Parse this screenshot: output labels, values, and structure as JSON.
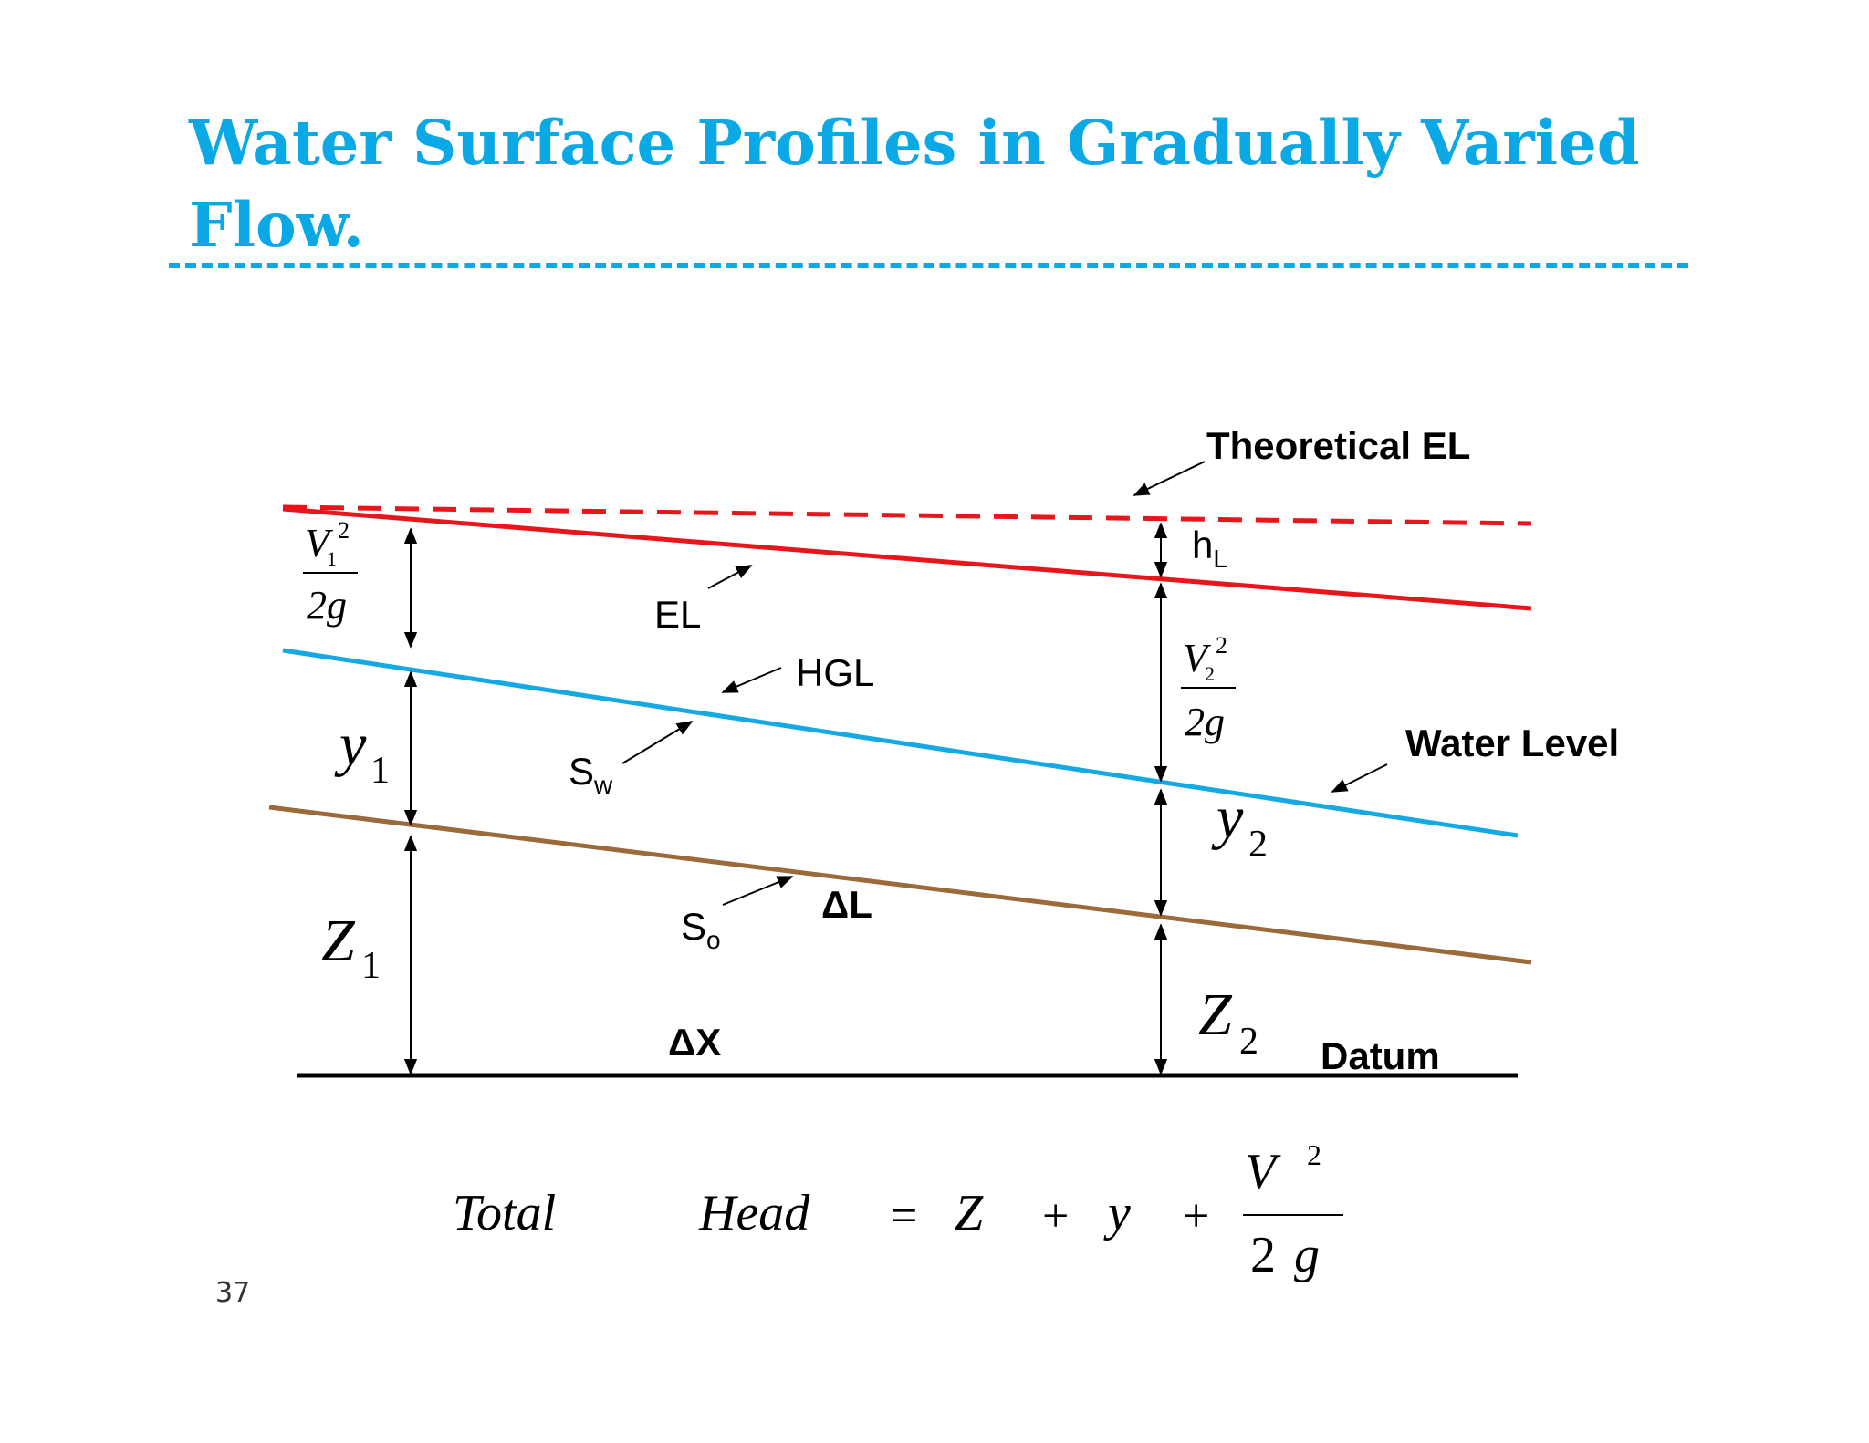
{
  "slide": {
    "title": "Water Surface Profiles in Gradually Varied Flow.",
    "page_number": "37"
  },
  "colors": {
    "title": "#0aa9e6",
    "energy_line": "#e8151b",
    "hgl": "#15a9e3",
    "bed": "#9a6a3b",
    "datum": "#000000"
  },
  "labels": {
    "theoretical_el": "Theoretical EL",
    "hl_main": "h",
    "hl_sub": "L",
    "el": "EL",
    "hgl": "HGL",
    "water_level": "Water Level",
    "sw_main": "S",
    "sw_sub": "w",
    "so_main": "S",
    "so_sub": "o",
    "delta_l": "ΔL",
    "delta_x": "ΔX",
    "datum": "Datum"
  },
  "symbols": {
    "v": "V",
    "two_g": "2g",
    "sq": "2",
    "one": "1",
    "two": "2",
    "y": "y",
    "z": "Z"
  },
  "equation": {
    "total": "Total",
    "head": "Head",
    "equals": "=",
    "z": "Z",
    "plus": "+",
    "y": "y",
    "plus2": "+",
    "num_v": "V",
    "num_exp": "2",
    "den_2": "2",
    "den_g": "g"
  }
}
